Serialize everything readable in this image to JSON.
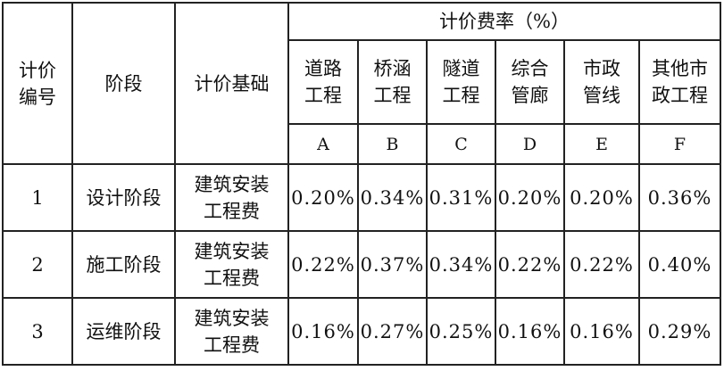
{
  "table": {
    "headers": {
      "code": "计价编号",
      "stage": "阶段",
      "basis": "计价基础",
      "rate_group": "计价费率（%）",
      "columns": [
        {
          "name": "道路工程",
          "letter": "A"
        },
        {
          "name": "桥涵工程",
          "letter": "B"
        },
        {
          "name": "隧道工程",
          "letter": "C"
        },
        {
          "name": "综合管廊",
          "letter": "D"
        },
        {
          "name": "市政管线",
          "letter": "E"
        },
        {
          "name": "其他市政工程",
          "letter": "F"
        }
      ]
    },
    "rows": [
      {
        "code": "1",
        "stage": "设计阶段",
        "basis": "建筑安装工程费",
        "rates": [
          "0.20%",
          "0.34%",
          "0.31%",
          "0.20%",
          "0.20%",
          "0.36%"
        ]
      },
      {
        "code": "2",
        "stage": "施工阶段",
        "basis": "建筑安装工程费",
        "rates": [
          "0.22%",
          "0.37%",
          "0.34%",
          "0.22%",
          "0.22%",
          "0.40%"
        ]
      },
      {
        "code": "3",
        "stage": "运维阶段",
        "basis": "建筑安装工程费",
        "rates": [
          "0.16%",
          "0.27%",
          "0.25%",
          "0.16%",
          "0.16%",
          "0.29%"
        ]
      }
    ]
  }
}
